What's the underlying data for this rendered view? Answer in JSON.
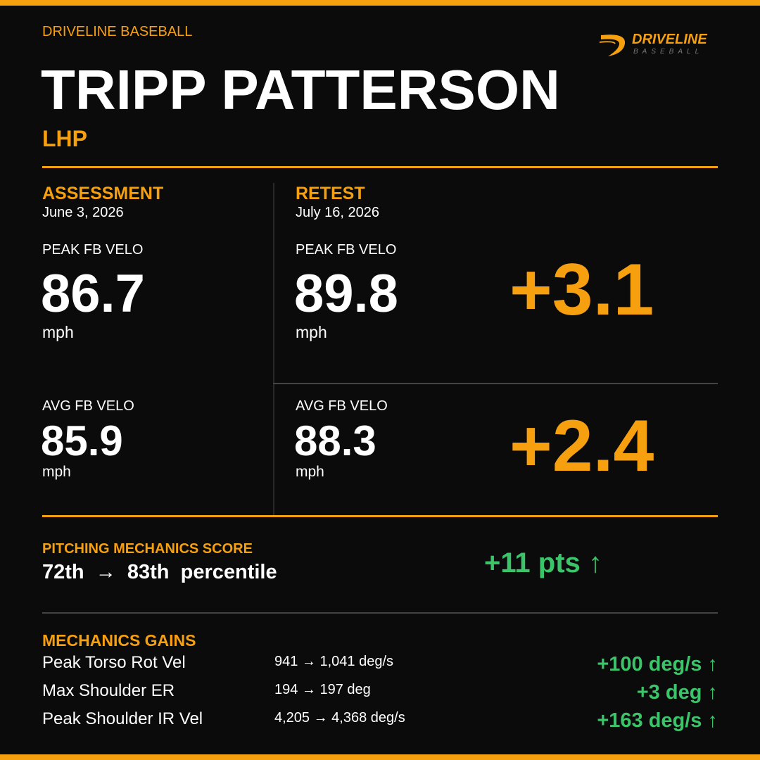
{
  "header": {
    "org": "DRIVELINE BASEBALL",
    "logo_word": "DRIVELINE",
    "logo_sub": "BASEBALL",
    "name": "TRIPP PATTERSON",
    "position": "LHP"
  },
  "comparison": {
    "columns": [
      {
        "heading": "ASSESSMENT",
        "date": "June 3, 2026"
      },
      {
        "heading": "RETEST",
        "date": "July 16, 2026"
      }
    ],
    "metrics": [
      {
        "cells": [
          {
            "label": "PEAK FB VELO",
            "value": "86.7",
            "unit": "mph"
          },
          {
            "label": "PEAK FB VELO",
            "value": "89.8",
            "unit": "mph"
          }
        ],
        "delta": "+3.1"
      },
      {
        "cells": [
          {
            "label": "AVG FB VELO",
            "value": "85.9",
            "unit": "mph"
          },
          {
            "label": "AVG FB VELO",
            "value": "88.3",
            "unit": "mph"
          }
        ],
        "delta": "+2.4"
      }
    ]
  },
  "score": {
    "title": "PITCHING MECHANICS SCORE",
    "change": "72th  →  83th  percentile",
    "gain": "+11 pts ↑"
  },
  "gains": {
    "title": "MECHANICS GAINS",
    "rows": [
      [
        "Peak Torso Rot Vel",
        "941 → 1,041 deg/s",
        "+100 deg/s ↑"
      ],
      [
        "Max Shoulder ER",
        "194 → 197 deg",
        "+3 deg ↑"
      ],
      [
        "Peak Shoulder IR Vel",
        "4,205 → 4,368 deg/s",
        "+163 deg/s ↑"
      ]
    ]
  }
}
